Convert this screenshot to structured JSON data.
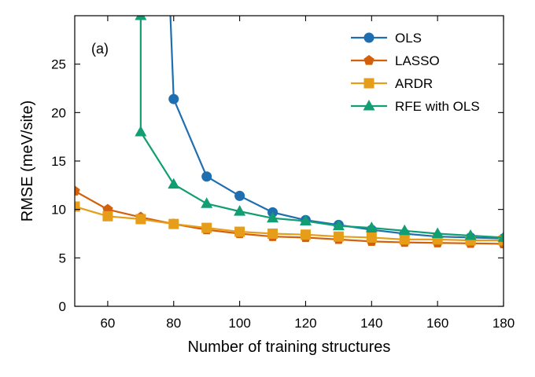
{
  "chart_data": {
    "type": "line",
    "panel_label": "(a)",
    "xlabel": "Number of training structures",
    "ylabel": "RMSE (meV/site)",
    "xlim": [
      50,
      180
    ],
    "ylim": [
      0,
      30
    ],
    "xticks": [
      60,
      80,
      100,
      120,
      140,
      160,
      180
    ],
    "yticks": [
      0,
      5,
      10,
      15,
      20,
      25
    ],
    "grid": false,
    "legend_position": "top-right",
    "series": [
      {
        "name": "OLS",
        "color": "#1f6fb0",
        "marker": "circle",
        "x": [
          79,
          80,
          90,
          100,
          110,
          120,
          130,
          140,
          150,
          160,
          170,
          180
        ],
        "y": [
          30,
          21.4,
          13.4,
          11.4,
          9.7,
          8.9,
          8.4,
          7.9,
          7.5,
          7.2,
          7.1,
          7.0
        ],
        "marker_x": [
          80,
          90,
          100,
          110,
          120,
          130,
          140,
          150,
          160,
          170,
          180
        ]
      },
      {
        "name": "LASSO",
        "color": "#d4600b",
        "marker": "pentagon",
        "x": [
          50,
          60,
          70,
          80,
          90,
          100,
          110,
          120,
          130,
          140,
          150,
          160,
          170,
          180
        ],
        "y": [
          11.9,
          10.0,
          9.2,
          8.5,
          7.9,
          7.5,
          7.2,
          7.1,
          6.9,
          6.7,
          6.6,
          6.55,
          6.5,
          6.45
        ],
        "marker_x": [
          50,
          60,
          70,
          80,
          90,
          100,
          110,
          120,
          130,
          140,
          150,
          160,
          170,
          180
        ]
      },
      {
        "name": "ARDR",
        "color": "#e69e1a",
        "marker": "square",
        "x": [
          50,
          60,
          70,
          80,
          90,
          100,
          110,
          120,
          130,
          140,
          150,
          160,
          170,
          180
        ],
        "y": [
          10.3,
          9.3,
          9.0,
          8.5,
          8.1,
          7.7,
          7.5,
          7.4,
          7.2,
          7.1,
          6.9,
          6.9,
          6.8,
          6.8
        ],
        "marker_x": [
          50,
          60,
          70,
          80,
          90,
          100,
          110,
          120,
          130,
          140,
          150,
          160,
          170,
          180
        ]
      },
      {
        "name": "RFE with OLS",
        "color": "#129e73",
        "marker": "triangle",
        "x": [
          70,
          70,
          80,
          90,
          100,
          110,
          120,
          130,
          140,
          150,
          160,
          170,
          180
        ],
        "y": [
          30,
          18.0,
          12.6,
          10.6,
          9.8,
          9.1,
          8.8,
          8.3,
          8.1,
          7.8,
          7.5,
          7.3,
          7.1
        ],
        "marker_x": [
          70,
          80,
          90,
          100,
          110,
          120,
          130,
          140,
          150,
          160,
          170,
          180
        ]
      }
    ]
  }
}
